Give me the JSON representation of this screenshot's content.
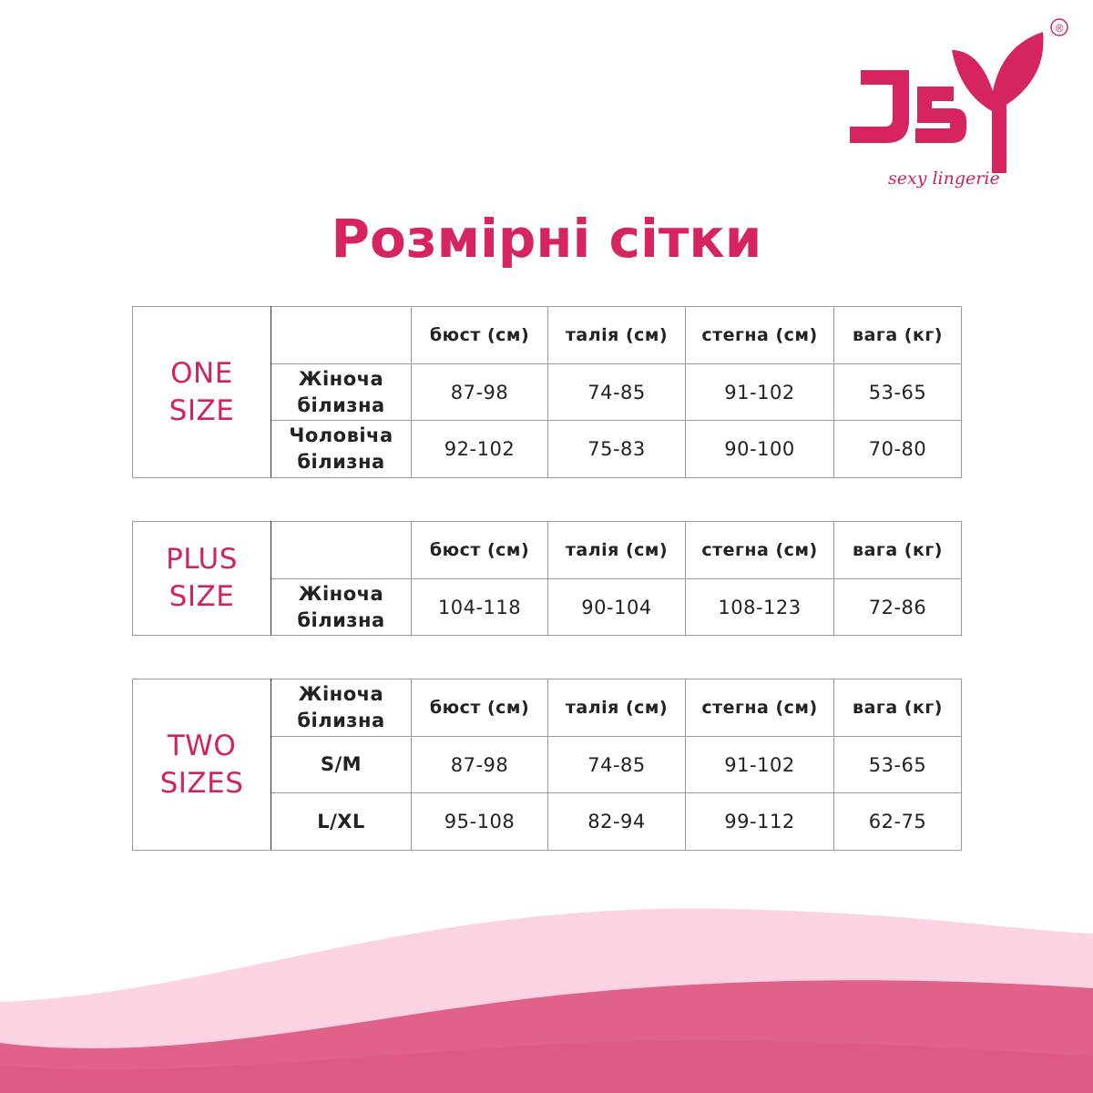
{
  "brand": {
    "logo_text": "JSY",
    "tagline": "sexy lingerie",
    "registered": "®",
    "color": "#d6245f"
  },
  "title": "Розмірні сітки",
  "headers": [
    "бюст (см)",
    "талія (см)",
    "стегна (см)",
    "вага (кг)"
  ],
  "tables": [
    {
      "group": [
        "ONE",
        "SIZE"
      ],
      "header_label": "",
      "rows": [
        {
          "label": [
            "Жіноча",
            "білизна"
          ],
          "values": [
            "87-98",
            "74-85",
            "91-102",
            "53-65"
          ]
        },
        {
          "label": [
            "Чоловіча",
            "білизна"
          ],
          "values": [
            "92-102",
            "75-83",
            "90-100",
            "70-80"
          ]
        }
      ]
    },
    {
      "group": [
        "PLUS",
        "SIZE"
      ],
      "header_label": "",
      "rows": [
        {
          "label": [
            "Жіноча",
            "білизна"
          ],
          "values": [
            "104-118",
            "90-104",
            "108-123",
            "72-86"
          ]
        }
      ]
    },
    {
      "group": [
        "TWO",
        "SIZES"
      ],
      "header_label": [
        "Жіноча",
        "білизна"
      ],
      "rows": [
        {
          "label": [
            "S/M"
          ],
          "values": [
            "87-98",
            "74-85",
            "91-102",
            "53-65"
          ]
        },
        {
          "label": [
            "L/XL"
          ],
          "values": [
            "95-108",
            "82-94",
            "99-112",
            "62-75"
          ]
        }
      ]
    }
  ],
  "colors": {
    "accent": "#d6245f",
    "wave_light": "#fcd3e3",
    "wave_dark": "#e0618a"
  }
}
